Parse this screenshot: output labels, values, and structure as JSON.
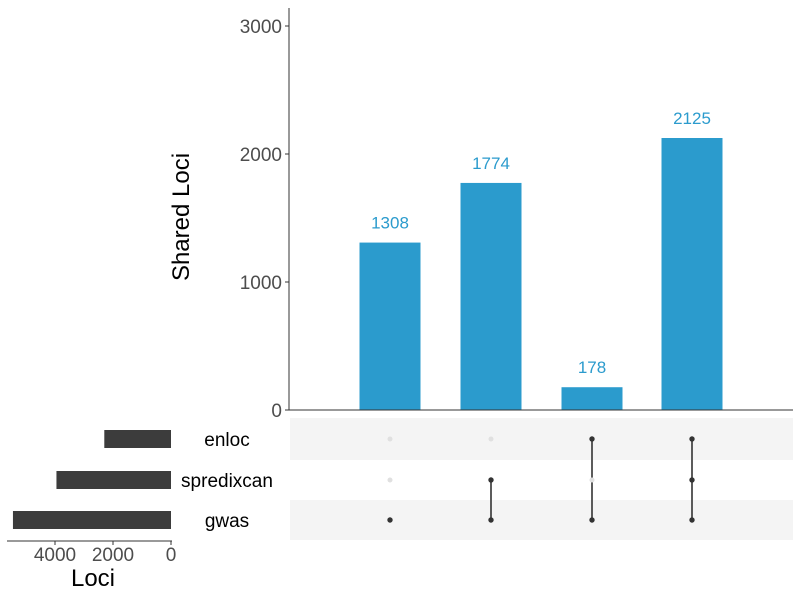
{
  "chart_data": {
    "type": "upset",
    "sets": [
      "enloc",
      "spredixcan",
      "gwas"
    ],
    "set_sizes": [
      2300,
      3950,
      5450
    ],
    "intersections": [
      {
        "members": [
          "gwas"
        ],
        "value": 1308
      },
      {
        "members": [
          "spredixcan",
          "gwas"
        ],
        "value": 1774
      },
      {
        "members": [
          "enloc",
          "gwas"
        ],
        "value": 178
      },
      {
        "members": [
          "enloc",
          "spredixcan",
          "gwas"
        ],
        "value": 2125
      }
    ],
    "main_bars": {
      "ylabel": "Shared Loci",
      "ylim": [
        0,
        3000
      ],
      "yticks": [
        0,
        1000,
        2000,
        3000
      ],
      "color": "#2b9bcd",
      "label_color": "#2b9bcd"
    },
    "set_bars": {
      "xlabel": "Loci",
      "xticks_labels": [
        "4000",
        "2000",
        "0"
      ],
      "xtick_values": [
        4000,
        2000,
        0
      ],
      "color": "#3c3c3c"
    },
    "matrix": {
      "dot_on_color": "#333333",
      "dot_off_color": "#e0e0e0",
      "stripe_color": "#f4f4f4"
    },
    "grid": false
  }
}
